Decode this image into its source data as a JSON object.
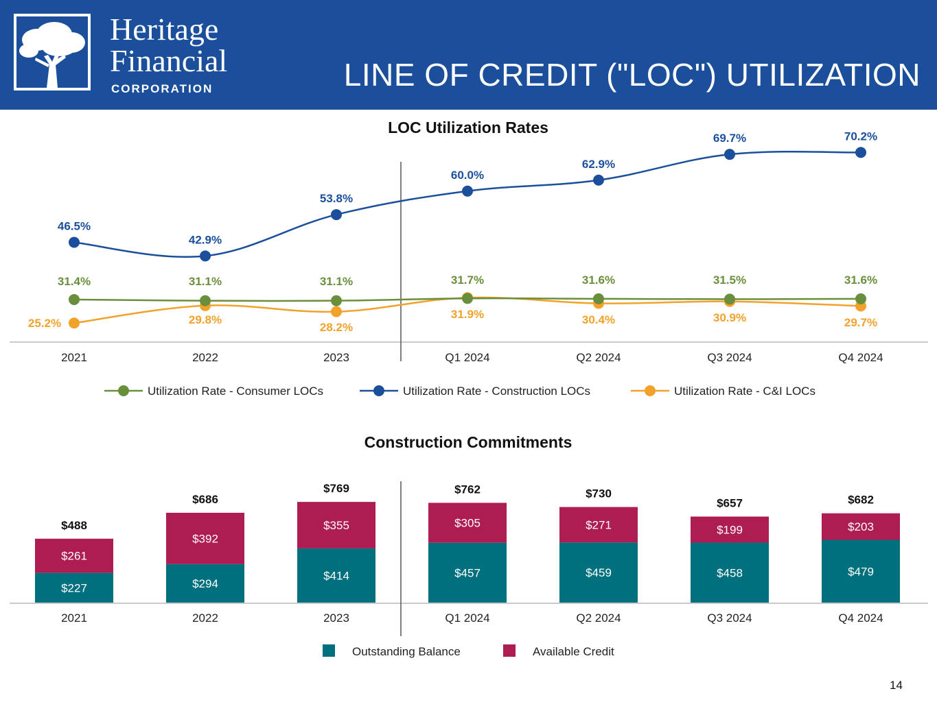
{
  "header": {
    "company_line1": "Heritage",
    "company_line2": "Financial",
    "company_line3": "CORPORATION",
    "title": "LINE OF CREDIT (\"LOC\") UTILIZATION",
    "logo_icon": "oak-tree-icon"
  },
  "colors": {
    "header_bg": "#1b4f9c",
    "consumer": "#6a8f3c",
    "construction": "#1b4f9c",
    "ci": "#f2a22a",
    "outstanding": "#00707f",
    "available": "#ad1d52"
  },
  "page_number": "14",
  "chart_data": [
    {
      "type": "line",
      "title": "LOC Utilization Rates",
      "categories": [
        "2021",
        "2022",
        "2023",
        "Q1 2024",
        "Q2 2024",
        "Q3 2024",
        "Q4 2024"
      ],
      "series": [
        {
          "name": "Utilization Rate - Consumer LOCs",
          "values": [
            31.4,
            31.1,
            31.1,
            31.7,
            31.6,
            31.5,
            31.6
          ],
          "labels": [
            "31.4%",
            "31.1%",
            "31.1%",
            "31.7%",
            "31.6%",
            "31.5%",
            "31.6%"
          ]
        },
        {
          "name": "Utilization Rate - Construction LOCs",
          "values": [
            46.5,
            42.9,
            53.8,
            60.0,
            62.9,
            69.7,
            70.2
          ],
          "labels": [
            "46.5%",
            "42.9%",
            "53.8%",
            "60.0%",
            "62.9%",
            "69.7%",
            "70.2%"
          ]
        },
        {
          "name": "Utilization Rate - C&I LOCs",
          "values": [
            25.2,
            29.8,
            28.2,
            31.9,
            30.4,
            30.9,
            29.7
          ],
          "labels": [
            "25.2%",
            "29.8%",
            "28.2%",
            "31.9%",
            "30.4%",
            "30.9%",
            "29.7%"
          ]
        }
      ],
      "xlabel": "",
      "ylabel": "",
      "ylim": [
        20,
        75
      ],
      "legend": "bottom"
    },
    {
      "type": "bar",
      "stacked": true,
      "title": "Construction Commitments",
      "categories": [
        "2021",
        "2022",
        "2023",
        "Q1 2024",
        "Q2 2024",
        "Q3 2024",
        "Q4 2024"
      ],
      "series": [
        {
          "name": "Outstanding Balance",
          "values": [
            227,
            294,
            414,
            457,
            459,
            458,
            479
          ],
          "labels": [
            "$227",
            "$294",
            "$414",
            "$457",
            "$459",
            "$458",
            "$479"
          ]
        },
        {
          "name": "Available Credit",
          "values": [
            261,
            392,
            355,
            305,
            271,
            199,
            203
          ],
          "labels": [
            "$261",
            "$392",
            "$355",
            "$305",
            "$271",
            "$199",
            "$203"
          ]
        }
      ],
      "totals": [
        488,
        686,
        769,
        762,
        730,
        657,
        682
      ],
      "total_labels": [
        "$488",
        "$686",
        "$769",
        "$762",
        "$730",
        "$657",
        "$682"
      ],
      "xlabel": "",
      "ylabel": "",
      "ylim": [
        0,
        800
      ],
      "legend": "bottom"
    }
  ]
}
